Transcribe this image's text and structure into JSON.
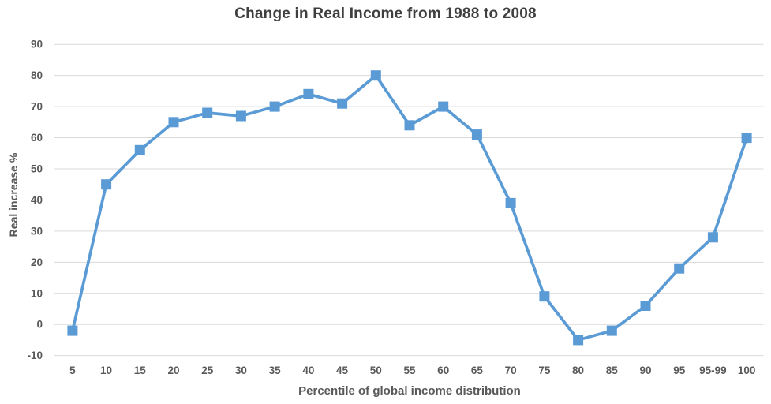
{
  "chart_data": {
    "type": "line",
    "title": "Change in Real Income from 1988 to 2008",
    "xlabel": "Percentile of global income distribution",
    "ylabel": "Real increase %",
    "categories": [
      "5",
      "10",
      "15",
      "20",
      "25",
      "30",
      "35",
      "40",
      "45",
      "50",
      "55",
      "60",
      "65",
      "70",
      "75",
      "80",
      "85",
      "90",
      "95",
      "95-99",
      "100"
    ],
    "series": [
      {
        "name": "Real increase %",
        "values": [
          -2,
          45,
          56,
          65,
          68,
          67,
          70,
          74,
          71,
          80,
          64,
          70,
          61,
          39,
          9,
          -5,
          -2,
          6,
          18,
          28,
          60
        ]
      }
    ],
    "ylim": [
      -10,
      90
    ],
    "yticks": [
      90,
      80,
      70,
      60,
      50,
      40,
      30,
      20,
      10,
      0,
      -10
    ],
    "grid": "horizontal-only",
    "legend": "none",
    "marker": "square",
    "colors": {
      "series": "#5B9BD5",
      "gridline": "#D9D9D9",
      "tick_label": "#595959",
      "axis_title": "#595959",
      "chart_title": "#3F3F3F",
      "background": "#FFFFFF"
    }
  }
}
